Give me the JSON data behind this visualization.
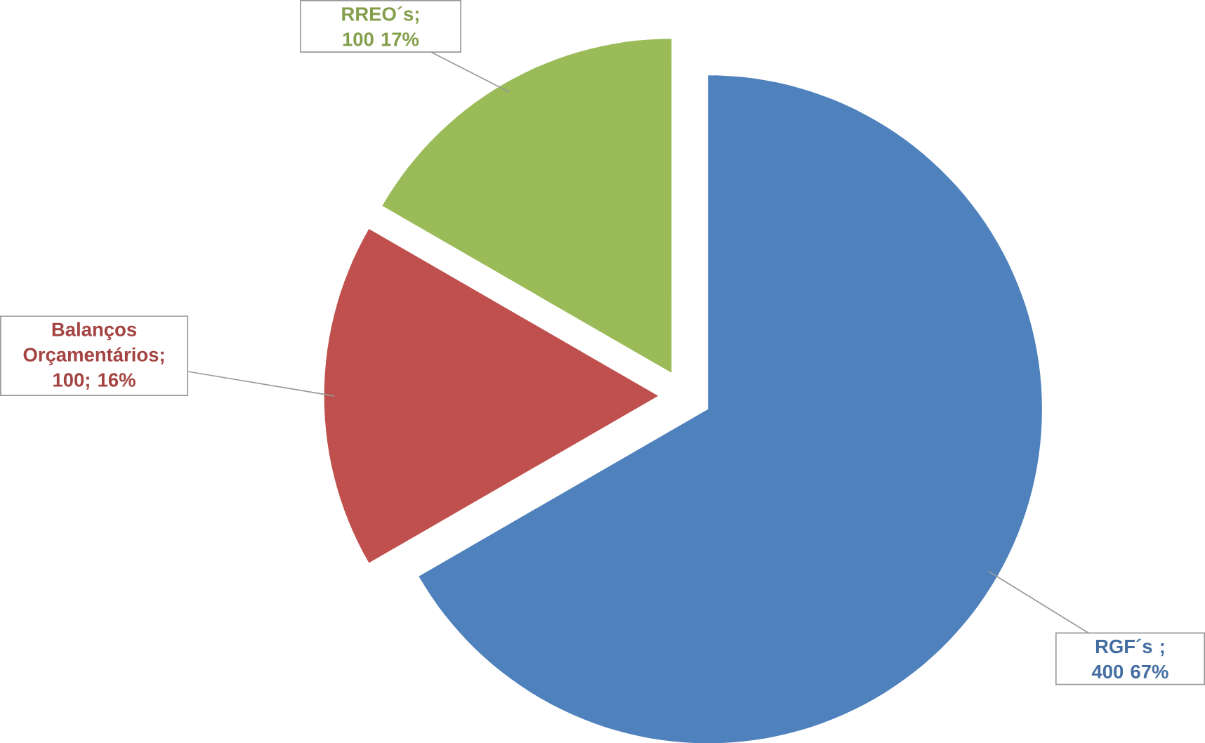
{
  "chart_data": {
    "type": "pie",
    "categories": [
      "RGF´s",
      "Balanços Orçamentários",
      "RREO´s"
    ],
    "values": [
      400,
      100,
      100
    ],
    "colors": [
      "#4f81bd",
      "#c0504d",
      "#9bbb59"
    ],
    "value_labels": [
      " ; 400 67%",
      "; 100; 16%",
      "; 100 17%"
    ]
  }
}
